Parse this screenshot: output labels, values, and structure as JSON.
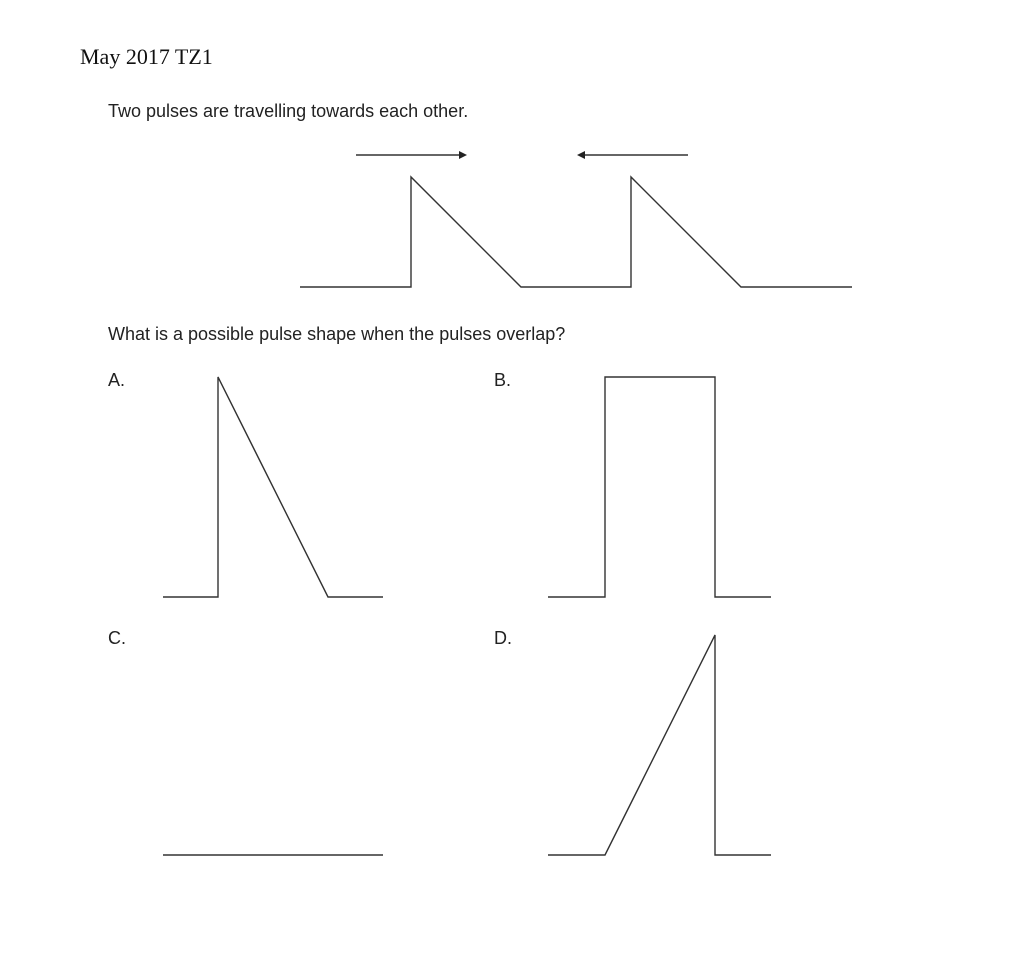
{
  "header": {
    "title": "May 2017 TZ1"
  },
  "question": {
    "intro": "Two pulses are travelling towards each other.",
    "prompt": "What is a possible pulse shape when the pulses overlap?"
  },
  "options": [
    {
      "label": "A."
    },
    {
      "label": "B."
    },
    {
      "label": "C."
    },
    {
      "label": "D."
    }
  ]
}
